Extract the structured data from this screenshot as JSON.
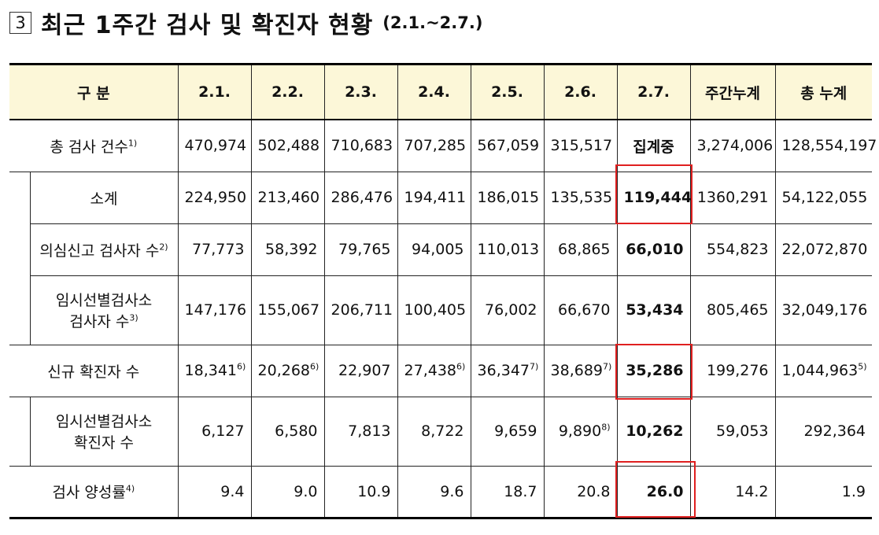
{
  "heading": {
    "number": "3",
    "title": "최근 1주간 검사 및 확진자 현황",
    "range": "(2.1.~2.7.)"
  },
  "table": {
    "header": [
      "구 분",
      "2.1.",
      "2.2.",
      "2.3.",
      "2.4.",
      "2.5.",
      "2.6.",
      "2.7.",
      "주간누계",
      "총 누계"
    ],
    "rows": {
      "total_tests": {
        "label": "총 검사 건수",
        "fn": "1)",
        "values": [
          "470,974",
          "502,488",
          "710,683",
          "707,285",
          "567,059",
          "315,517",
          "집계중",
          "3,274,006",
          "128,554,197"
        ],
        "fns": [
          "",
          "",
          "",
          "",
          "",
          "",
          "",
          "",
          ""
        ]
      },
      "subtotal": {
        "label": "소계",
        "fn": "",
        "values": [
          "224,950",
          "213,460",
          "286,476",
          "194,411",
          "186,015",
          "135,535",
          "119,444",
          "1360,291",
          "54,122,055"
        ],
        "fns": [
          "",
          "",
          "",
          "",
          "",
          "",
          "",
          "",
          ""
        ]
      },
      "suspected": {
        "label": "의심신고 검사자 수",
        "fn": "2)",
        "values": [
          "77,773",
          "58,392",
          "79,765",
          "94,005",
          "110,013",
          "68,865",
          "66,010",
          "554,823",
          "22,072,870"
        ],
        "fns": [
          "",
          "",
          "",
          "",
          "",
          "",
          "",
          "",
          ""
        ]
      },
      "temp_screening": {
        "label_line1": "임시선별검사소",
        "label_line2": "검사자 수",
        "fn": "3)",
        "values": [
          "147,176",
          "155,067",
          "206,711",
          "100,405",
          "76,002",
          "66,670",
          "53,434",
          "805,465",
          "32,049,176"
        ],
        "fns": [
          "",
          "",
          "",
          "",
          "",
          "",
          "",
          "",
          ""
        ]
      },
      "new_cases": {
        "label": "신규 확진자 수",
        "fn": "",
        "values": [
          "18,341",
          "20,268",
          "22,907",
          "27,438",
          "36,347",
          "38,689",
          "35,286",
          "199,276",
          "1,044,963"
        ],
        "fns": [
          "6)",
          "6)",
          "",
          "6)",
          "7)",
          "7)",
          "",
          "",
          "5)"
        ]
      },
      "temp_cases": {
        "label_line1": "임시선별검사소",
        "label_line2": "확진자 수",
        "fn": "",
        "values": [
          "6,127",
          "6,580",
          "7,813",
          "8,722",
          "9,659",
          "9,890",
          "10,262",
          "59,053",
          "292,364"
        ],
        "fns": [
          "",
          "",
          "",
          "",
          "",
          "8)",
          "",
          "",
          ""
        ]
      },
      "positivity": {
        "label": "검사 양성률",
        "fn": "4)",
        "values": [
          "9.4",
          "9.0",
          "10.9",
          "9.6",
          "18.7",
          "20.8",
          "26.0",
          "14.2",
          "1.9"
        ],
        "fns": [
          "",
          "",
          "",
          "",
          "",
          "",
          "",
          "",
          ""
        ]
      }
    }
  },
  "colors": {
    "header_bg": "#fcf7d8",
    "highlight": "#e02020"
  }
}
